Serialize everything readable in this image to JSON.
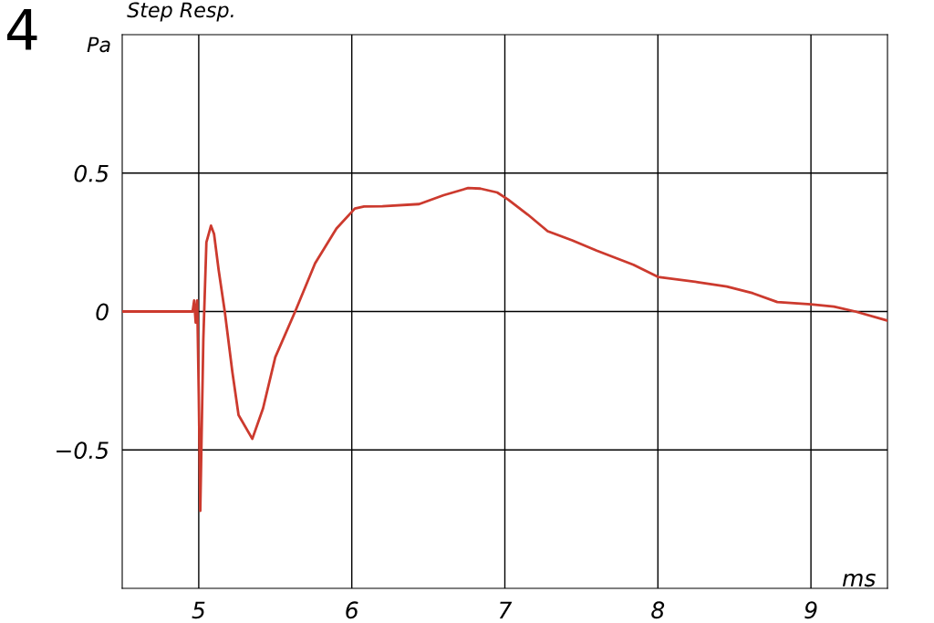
{
  "chart_data": {
    "type": "line",
    "title": "Step Resp.",
    "xlabel": "ms",
    "ylabel": "Pa",
    "annotations": [
      "4"
    ],
    "x": [
      4.5,
      4.96,
      4.97,
      4.98,
      4.99,
      5.0,
      5.01,
      5.03,
      5.05,
      5.08,
      5.1,
      5.13,
      5.17,
      5.22,
      5.26,
      5.35,
      5.42,
      5.5,
      5.63,
      5.76,
      5.9,
      6.02,
      6.08,
      6.2,
      6.44,
      6.6,
      6.76,
      6.84,
      6.95,
      7.02,
      7.15,
      7.28,
      7.44,
      7.6,
      7.84,
      8.0,
      8.26,
      8.45,
      8.62,
      8.78,
      9.0,
      9.15,
      9.29,
      9.5
    ],
    "series": [
      {
        "color": "#cc3a2e",
        "values": [
          0,
          0,
          0.04,
          -0.04,
          0.04,
          -0.3,
          -0.72,
          -0.1,
          0.25,
          0.31,
          0.28,
          0.15,
          0,
          -0.22,
          -0.374,
          -0.46,
          -0.35,
          -0.165,
          0,
          0.174,
          0.3,
          0.372,
          0.379,
          0.38,
          0.388,
          0.42,
          0.446,
          0.444,
          0.43,
          0.405,
          0.35,
          0.29,
          0.257,
          0.22,
          0.169,
          0.125,
          0.106,
          0.09,
          0.066,
          0.034,
          0.026,
          0.018,
          0,
          -0.033
        ]
      }
    ],
    "xlim": [
      4.5,
      9.5
    ],
    "ylim": [
      -1.0,
      1.0
    ],
    "xticks": [
      5,
      6,
      7,
      8,
      9
    ],
    "yticks": [
      {
        "value": -0.5,
        "label": "−0.5"
      },
      0,
      0.5
    ],
    "grid": true
  }
}
